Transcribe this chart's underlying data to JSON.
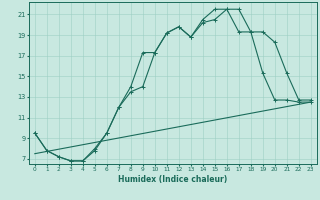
{
  "title": "",
  "xlabel": "Humidex (Indice chaleur)",
  "background_color": "#c8e8e0",
  "line_color": "#1a6b5a",
  "xlim": [
    -0.5,
    23.5
  ],
  "ylim": [
    6.5,
    22.2
  ],
  "xticks": [
    0,
    1,
    2,
    3,
    4,
    5,
    6,
    7,
    8,
    9,
    10,
    11,
    12,
    13,
    14,
    15,
    16,
    17,
    18,
    19,
    20,
    21,
    22,
    23
  ],
  "yticks": [
    7,
    9,
    11,
    13,
    15,
    17,
    19,
    21
  ],
  "line1_x": [
    0,
    1,
    2,
    3,
    4,
    5,
    6,
    7,
    8,
    9,
    10,
    11,
    12,
    13,
    14,
    15,
    16,
    17,
    18,
    19,
    20,
    21,
    22,
    23
  ],
  "line1_y": [
    9.5,
    7.8,
    7.2,
    6.8,
    6.8,
    7.8,
    9.5,
    12.0,
    14.0,
    17.3,
    17.3,
    19.2,
    19.8,
    18.8,
    20.2,
    20.5,
    21.5,
    21.5,
    19.3,
    19.3,
    18.3,
    15.3,
    12.7,
    12.7
  ],
  "line2_x": [
    0,
    1,
    2,
    3,
    4,
    5,
    6,
    7,
    8,
    9,
    10,
    11,
    12,
    13,
    14,
    15,
    16,
    17,
    18,
    19,
    20,
    21,
    22,
    23
  ],
  "line2_y": [
    9.5,
    7.8,
    7.2,
    6.8,
    6.8,
    8.0,
    9.5,
    12.0,
    13.5,
    14.0,
    17.3,
    19.2,
    19.8,
    18.8,
    20.5,
    21.5,
    21.5,
    19.3,
    19.3,
    15.3,
    12.7,
    12.7,
    12.5,
    12.5
  ],
  "line3_x": [
    0,
    23
  ],
  "line3_y": [
    7.5,
    12.5
  ],
  "grid_color": "#9ecfc4",
  "marker": "+",
  "marker_size": 3.5,
  "linewidth": 0.8
}
